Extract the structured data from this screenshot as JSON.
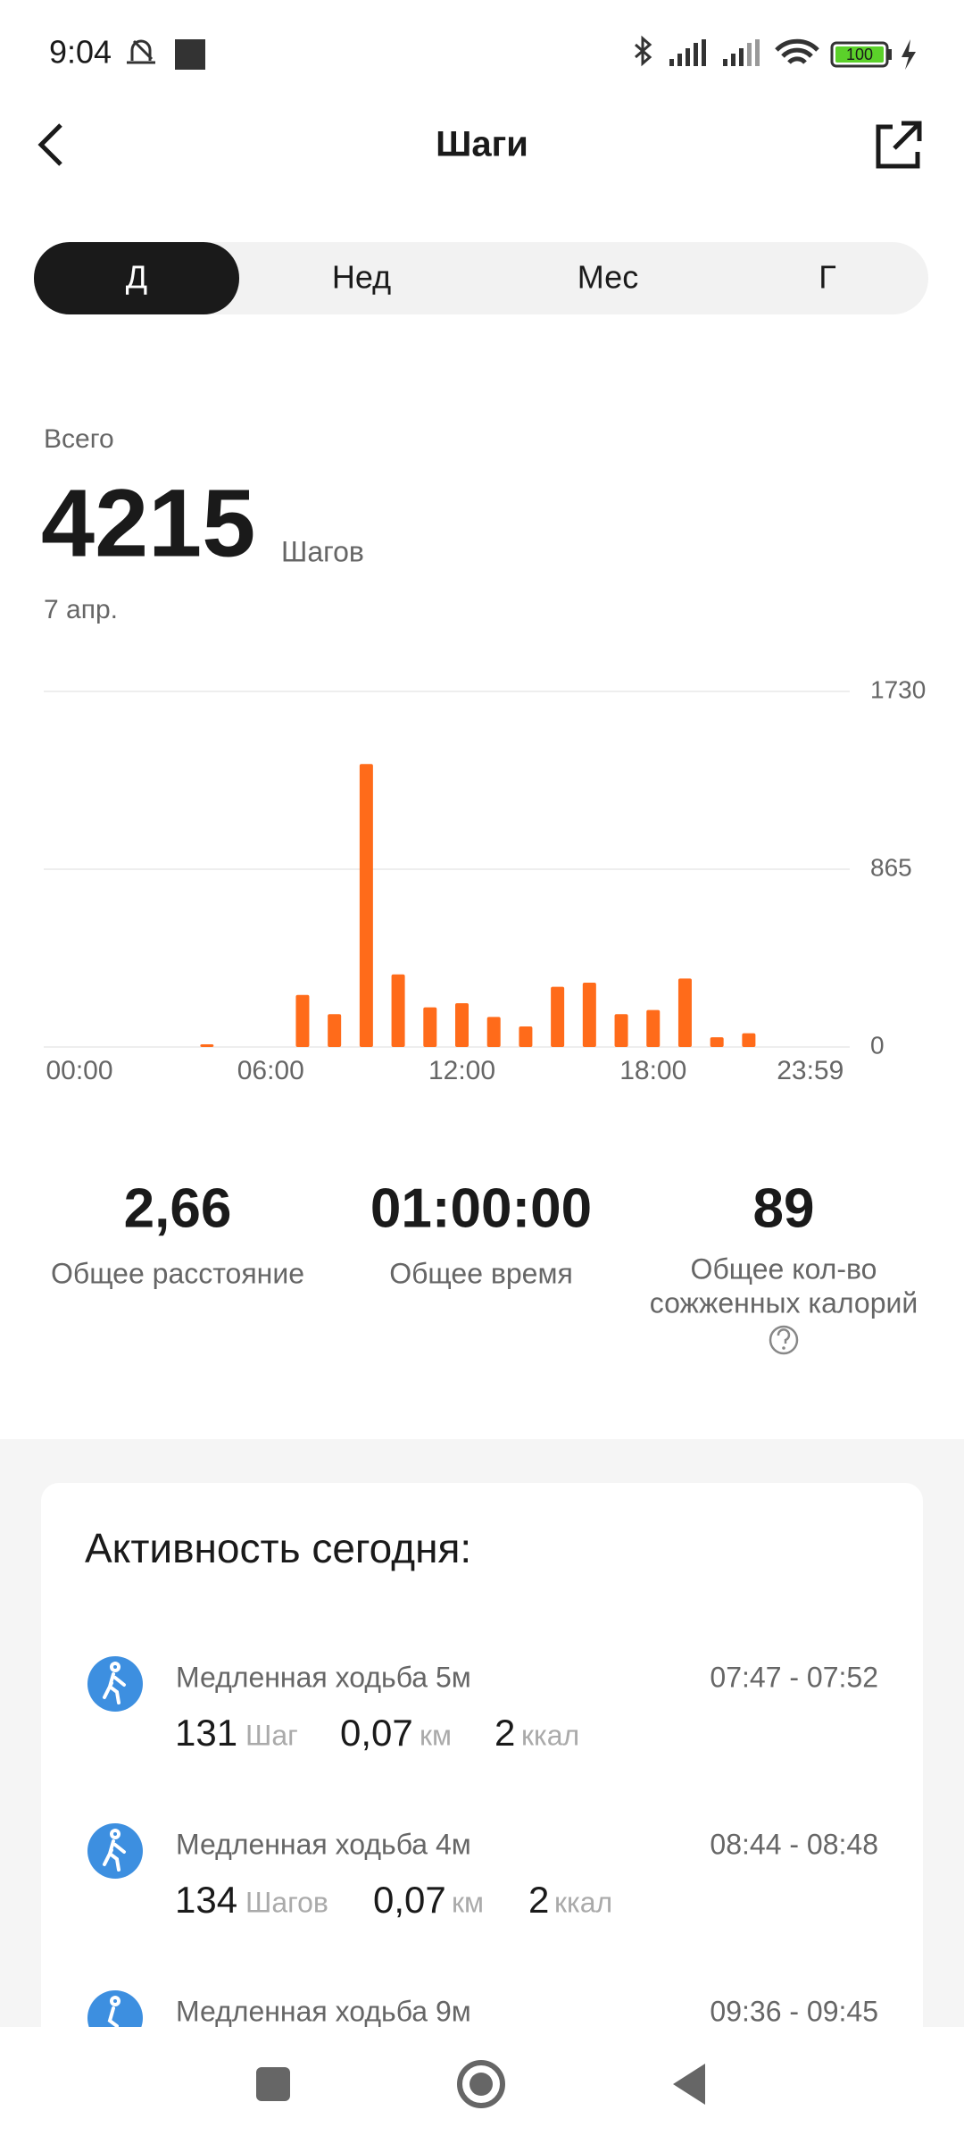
{
  "status_bar": {
    "time": "9:04",
    "battery": "100"
  },
  "header": {
    "title": "Шаги"
  },
  "tabs": [
    "Д",
    "Нед",
    "Мес",
    "Г"
  ],
  "summary": {
    "label": "Всего",
    "total": 4215,
    "unit": "Шагов",
    "date": "7 апр."
  },
  "chart_data": {
    "type": "bar",
    "x": [
      4,
      7,
      8,
      9,
      10,
      11,
      12,
      13,
      14,
      15,
      16,
      17,
      18,
      19,
      20,
      21
    ],
    "values": [
      13,
      253,
      160,
      1377,
      353,
      193,
      213,
      146,
      100,
      293,
      313,
      160,
      180,
      333,
      47,
      67
    ],
    "color": "#ff6b1a",
    "xlim": [
      0,
      24
    ],
    "xticks": [
      {
        "value": 0,
        "label": "00:00"
      },
      {
        "value": 6,
        "label": "06:00"
      },
      {
        "value": 12,
        "label": "12:00"
      },
      {
        "value": 18,
        "label": "18:00"
      },
      {
        "value": 23.98,
        "label": "23:59"
      }
    ],
    "ylim": [
      0,
      1730
    ],
    "yticks": [
      0,
      865,
      1730
    ],
    "grid": true
  },
  "stats": [
    {
      "value": "2,66",
      "label": "Общее расстояние"
    },
    {
      "value": "01:00:00",
      "label": "Общее время"
    },
    {
      "value": "89",
      "label_lines": [
        "Общее кол-во",
        "сожженных калорий"
      ]
    }
  ],
  "activity": {
    "title": "Активность сегодня:",
    "items": [
      {
        "name": "Медленная ходьба 5м",
        "time": "07:47 - 07:52",
        "steps": "131",
        "steps_unit": "Шаг",
        "distance": "0,07",
        "distance_unit": "км",
        "kcal": "2",
        "kcal_unit": "ккал"
      },
      {
        "name": "Медленная ходьба 4м",
        "time": "08:44 - 08:48",
        "steps": "134",
        "steps_unit": "Шагов",
        "distance": "0,07",
        "distance_unit": "км",
        "kcal": "2",
        "kcal_unit": "ккал"
      },
      {
        "name": "Медленная ходьба 9м",
        "time": "09:36 - 09:45"
      }
    ]
  }
}
